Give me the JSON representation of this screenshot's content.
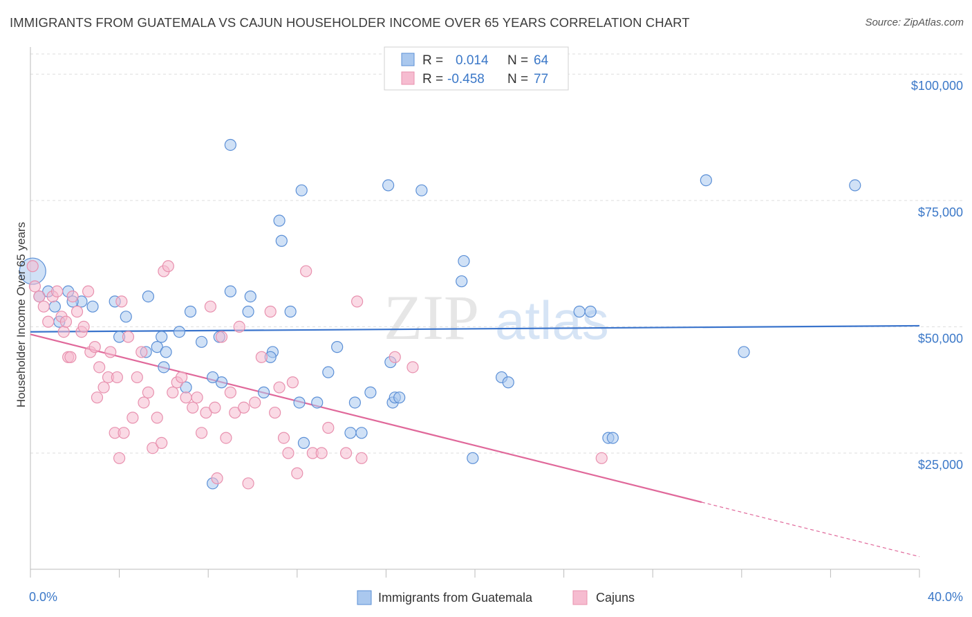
{
  "header": {
    "title": "IMMIGRANTS FROM GUATEMALA VS CAJUN HOUSEHOLDER INCOME OVER 65 YEARS CORRELATION CHART",
    "source": "Source: ZipAtlas.com"
  },
  "watermark": {
    "zip": "ZIP",
    "atlas": "atlas"
  },
  "colors": {
    "blue_fill": "#aac8ee",
    "blue_stroke": "#5b8fd6",
    "blue_line": "#3a74cc",
    "pink_fill": "#f6bcd0",
    "pink_stroke": "#e890ae",
    "pink_line": "#e0689a",
    "tick_text": "#3b78c8",
    "grid": "#dddddd"
  },
  "legend": {
    "row1": {
      "r_label": "R =",
      "r_value": "0.014",
      "n_label": "N =",
      "n_value": "64"
    },
    "row2": {
      "r_label": "R =",
      "r_value": "-0.458",
      "n_label": "N =",
      "n_value": "77"
    }
  },
  "bottom_legend": {
    "series1": "Immigrants from Guatemala",
    "series2": "Cajuns"
  },
  "chart_data": {
    "type": "scatter",
    "title": "IMMIGRANTS FROM GUATEMALA VS CAJUN HOUSEHOLDER INCOME OVER 65 YEARS CORRELATION CHART",
    "xlabel": "",
    "ylabel": "Householder Income Over 65 years",
    "xlim": [
      0,
      40
    ],
    "ylim": [
      2000,
      104000
    ],
    "x_tick_labels": [
      "0.0%",
      "40.0%"
    ],
    "y_ticks": [
      25000,
      50000,
      75000,
      100000
    ],
    "y_tick_labels": [
      "$25,000",
      "$50,000",
      "$75,000",
      "$100,000"
    ],
    "grid": true,
    "legend_position": "top-center",
    "series": [
      {
        "name": "Immigrants from Guatemala",
        "color": "#5b8fd6",
        "trend": {
          "x": [
            0,
            40
          ],
          "y": [
            49000,
            50200
          ],
          "solid_to": 40
        },
        "points": [
          [
            0.1,
            61000
          ],
          [
            0.4,
            56000
          ],
          [
            0.8,
            57000
          ],
          [
            1.1,
            54000
          ],
          [
            1.7,
            57000
          ],
          [
            1.3,
            51000
          ],
          [
            2.3,
            55000
          ],
          [
            1.9,
            55000
          ],
          [
            2.8,
            54000
          ],
          [
            3.8,
            55000
          ],
          [
            4.3,
            52000
          ],
          [
            4.0,
            48000
          ],
          [
            5.2,
            45000
          ],
          [
            5.7,
            46000
          ],
          [
            5.3,
            56000
          ],
          [
            5.9,
            48000
          ],
          [
            6.1,
            45000
          ],
          [
            6.0,
            42000
          ],
          [
            7.0,
            38000
          ],
          [
            7.2,
            53000
          ],
          [
            6.7,
            49000
          ],
          [
            8.6,
            39000
          ],
          [
            8.2,
            40000
          ],
          [
            7.7,
            47000
          ],
          [
            8.5,
            48000
          ],
          [
            9.0,
            57000
          ],
          [
            8.2,
            19000
          ],
          [
            9.8,
            53000
          ],
          [
            9.9,
            56000
          ],
          [
            10.5,
            37000
          ],
          [
            10.9,
            45000
          ],
          [
            11.7,
            53000
          ],
          [
            11.2,
            71000
          ],
          [
            11.3,
            67000
          ],
          [
            12.1,
            35000
          ],
          [
            12.3,
            27000
          ],
          [
            12.9,
            35000
          ],
          [
            13.4,
            41000
          ],
          [
            13.8,
            46000
          ],
          [
            14.4,
            29000
          ],
          [
            14.6,
            35000
          ],
          [
            14.9,
            29000
          ],
          [
            15.3,
            37000
          ],
          [
            16.2,
            43000
          ],
          [
            16.3,
            35000
          ],
          [
            16.4,
            36000
          ],
          [
            16.6,
            36000
          ],
          [
            19.5,
            63000
          ],
          [
            19.4,
            59000
          ],
          [
            19.9,
            24000
          ],
          [
            21.2,
            40000
          ],
          [
            21.5,
            39000
          ],
          [
            24.7,
            53000
          ],
          [
            25.2,
            53000
          ],
          [
            26.0,
            28000
          ],
          [
            26.2,
            28000
          ],
          [
            30.4,
            79000
          ],
          [
            32.1,
            45000
          ],
          [
            37.1,
            78000
          ],
          [
            16.1,
            78000
          ],
          [
            17.6,
            77000
          ],
          [
            12.2,
            77000
          ],
          [
            9.0,
            86000
          ],
          [
            10.8,
            44000
          ]
        ]
      },
      {
        "name": "Cajuns",
        "color": "#e890ae",
        "trend": {
          "x": [
            0,
            40
          ],
          "y": [
            48500,
            4500
          ],
          "solid_to": 30.2
        },
        "points": [
          [
            0.1,
            62000
          ],
          [
            0.2,
            58000
          ],
          [
            0.4,
            56000
          ],
          [
            0.6,
            54000
          ],
          [
            0.8,
            51000
          ],
          [
            1.0,
            56000
          ],
          [
            1.2,
            57000
          ],
          [
            1.4,
            52000
          ],
          [
            1.5,
            49000
          ],
          [
            1.6,
            51000
          ],
          [
            1.7,
            44000
          ],
          [
            1.8,
            44000
          ],
          [
            1.9,
            56000
          ],
          [
            2.1,
            53000
          ],
          [
            2.3,
            49000
          ],
          [
            2.4,
            50000
          ],
          [
            2.6,
            57000
          ],
          [
            2.7,
            45000
          ],
          [
            2.9,
            46000
          ],
          [
            3.0,
            36000
          ],
          [
            3.1,
            42000
          ],
          [
            3.3,
            38000
          ],
          [
            3.5,
            40000
          ],
          [
            3.6,
            45000
          ],
          [
            3.8,
            29000
          ],
          [
            3.9,
            40000
          ],
          [
            4.0,
            24000
          ],
          [
            4.1,
            55000
          ],
          [
            4.2,
            29000
          ],
          [
            4.4,
            48000
          ],
          [
            4.6,
            32000
          ],
          [
            4.8,
            40000
          ],
          [
            5.0,
            45000
          ],
          [
            5.1,
            35000
          ],
          [
            5.3,
            37000
          ],
          [
            5.5,
            26000
          ],
          [
            5.7,
            32000
          ],
          [
            5.9,
            27000
          ],
          [
            6.0,
            61000
          ],
          [
            6.2,
            62000
          ],
          [
            6.4,
            37000
          ],
          [
            6.6,
            39000
          ],
          [
            6.8,
            40000
          ],
          [
            7.0,
            36000
          ],
          [
            7.3,
            34000
          ],
          [
            7.5,
            36000
          ],
          [
            7.7,
            29000
          ],
          [
            7.9,
            33000
          ],
          [
            8.1,
            54000
          ],
          [
            8.3,
            34000
          ],
          [
            8.4,
            20000
          ],
          [
            8.6,
            48000
          ],
          [
            8.8,
            28000
          ],
          [
            9.0,
            37000
          ],
          [
            9.2,
            33000
          ],
          [
            9.4,
            50000
          ],
          [
            9.6,
            34000
          ],
          [
            9.8,
            19000
          ],
          [
            10.1,
            35000
          ],
          [
            10.4,
            44000
          ],
          [
            10.8,
            53000
          ],
          [
            11.0,
            33000
          ],
          [
            11.2,
            38000
          ],
          [
            11.4,
            28000
          ],
          [
            11.6,
            25000
          ],
          [
            11.8,
            39000
          ],
          [
            12.0,
            21000
          ],
          [
            12.4,
            61000
          ],
          [
            12.7,
            25000
          ],
          [
            13.1,
            25000
          ],
          [
            13.4,
            30000
          ],
          [
            14.2,
            25000
          ],
          [
            14.7,
            55000
          ],
          [
            14.9,
            24000
          ],
          [
            16.4,
            44000
          ],
          [
            17.2,
            42000
          ],
          [
            25.7,
            24000
          ]
        ]
      }
    ]
  }
}
